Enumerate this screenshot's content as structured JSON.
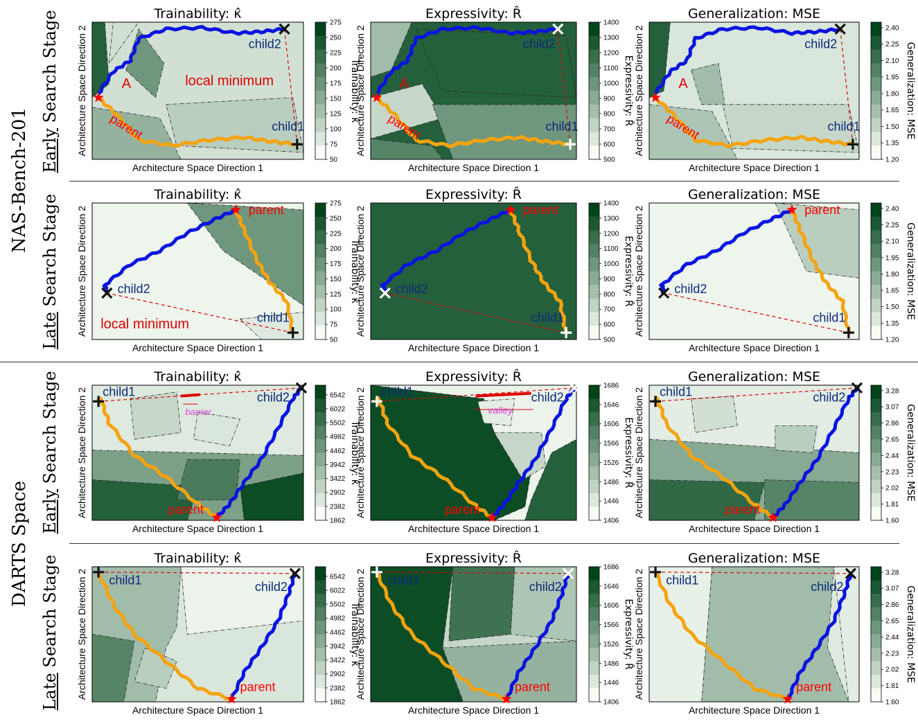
{
  "figure": {
    "group_labels": [
      "NAS-Bench-201",
      "DARTS Space"
    ],
    "stage_words": [
      "Early",
      "Late"
    ],
    "stage_suffix": " Search Stage",
    "xlabel": "Architecture Space Direction 1",
    "ylabel": "Architecture Space Direction 2",
    "metric_titles": [
      "Trainability: κ̂",
      "Expressivity: R̂",
      "Generalization: MSE"
    ],
    "colorbar_labels": [
      "Trainability: κ̂",
      "Expressivity: R̂",
      "Generalization: MSE"
    ],
    "point_labels": {
      "parent": "parent",
      "child1": "child1",
      "child2": "child2"
    },
    "annotations": {
      "A": "A",
      "local_minimum": "local minimum",
      "barrier": "barrier",
      "valley": "valley"
    },
    "colors": {
      "child2_path": "#0a14e0",
      "child1_path": "#f5a30f",
      "parent_marker": "#ff0000",
      "dashed_line": "#e00000",
      "annotation": "#e00000",
      "barrier_label": "#e040e0",
      "label_navy": "#0d2a78"
    }
  },
  "chart_data": [
    {
      "type": "heatmap",
      "title": "Trainability: κ̂",
      "space": "NAS-Bench-201",
      "stage": "Early",
      "xlabel": "Architecture Space Direction 1",
      "ylabel": "Architecture Space Direction 2",
      "colorbar_label": "Trainability: κ̂",
      "colorbar_ticks": [
        "50",
        "75",
        "100",
        "125",
        "150",
        "175",
        "200",
        "225",
        "250",
        "275"
      ],
      "colorbar_range": [
        50,
        275
      ],
      "annotations": [
        "A",
        "local minimum"
      ]
    },
    {
      "type": "heatmap",
      "title": "Expressivity: R̂",
      "space": "NAS-Bench-201",
      "stage": "Early",
      "xlabel": "Architecture Space Direction 1",
      "ylabel": "Architecture Space Direction 2",
      "colorbar_label": "Expressivity: R̂",
      "colorbar_ticks": [
        "500",
        "600",
        "700",
        "800",
        "900",
        "1000",
        "1100",
        "1200",
        "1300",
        "1400"
      ],
      "colorbar_range": [
        500,
        1400
      ],
      "annotations": [
        "A"
      ]
    },
    {
      "type": "heatmap",
      "title": "Generalization: MSE",
      "space": "NAS-Bench-201",
      "stage": "Early",
      "xlabel": "Architecture Space Direction 1",
      "ylabel": "Architecture Space Direction 2",
      "colorbar_label": "Generalization: MSE",
      "colorbar_ticks": [
        "1.20",
        "1.35",
        "1.50",
        "1.65",
        "1.80",
        "1.95",
        "2.10",
        "2.25",
        "2.40"
      ],
      "colorbar_range": [
        1.2,
        2.45
      ],
      "annotations": [
        "A"
      ]
    },
    {
      "type": "heatmap",
      "title": "Trainability: κ̂",
      "space": "NAS-Bench-201",
      "stage": "Late",
      "xlabel": "Architecture Space Direction 1",
      "ylabel": "Architecture Space Direction 2",
      "colorbar_label": "Trainability: κ̂",
      "colorbar_ticks": [
        "50",
        "75",
        "100",
        "125",
        "150",
        "175",
        "200",
        "225",
        "250",
        "275"
      ],
      "colorbar_range": [
        50,
        275
      ],
      "annotations": [
        "local minimum"
      ]
    },
    {
      "type": "heatmap",
      "title": "Expressivity: R̂",
      "space": "NAS-Bench-201",
      "stage": "Late",
      "xlabel": "Architecture Space Direction 1",
      "ylabel": "Architecture Space Direction 2",
      "colorbar_label": "Expressivity: R̂",
      "colorbar_ticks": [
        "500",
        "600",
        "700",
        "800",
        "900",
        "1000",
        "1100",
        "1200",
        "1300",
        "1400"
      ],
      "colorbar_range": [
        500,
        1400
      ],
      "annotations": []
    },
    {
      "type": "heatmap",
      "title": "Generalization: MSE",
      "space": "NAS-Bench-201",
      "stage": "Late",
      "xlabel": "Architecture Space Direction 1",
      "ylabel": "Architecture Space Direction 2",
      "colorbar_label": "Generalization: MSE",
      "colorbar_ticks": [
        "1.20",
        "1.35",
        "1.50",
        "1.65",
        "1.80",
        "1.95",
        "2.10",
        "2.25",
        "2.40"
      ],
      "colorbar_range": [
        1.2,
        2.45
      ],
      "annotations": []
    },
    {
      "type": "heatmap",
      "title": "Trainability: κ̂",
      "space": "DARTS Space",
      "stage": "Early",
      "xlabel": "Architecture Space Direction 1",
      "ylabel": "Architecture Space Direction 2",
      "colorbar_label": "Trainability: κ̂",
      "colorbar_ticks": [
        "1862",
        "2382",
        "2902",
        "3422",
        "3942",
        "4462",
        "4982",
        "5502",
        "6022",
        "6542"
      ],
      "colorbar_range": [
        1862,
        6900
      ],
      "annotations": [
        "barrier"
      ]
    },
    {
      "type": "heatmap",
      "title": "Expressivity: R̂",
      "space": "DARTS Space",
      "stage": "Early",
      "xlabel": "Architecture Space Direction 1",
      "ylabel": "Architecture Space Direction 2",
      "colorbar_label": "Expressivity: R̂",
      "colorbar_ticks": [
        "1406",
        "1446",
        "1486",
        "1526",
        "1566",
        "1606",
        "1646",
        "1686"
      ],
      "colorbar_range": [
        1406,
        1686
      ],
      "annotations": [
        "valley"
      ]
    },
    {
      "type": "heatmap",
      "title": "Generalization: MSE",
      "space": "DARTS Space",
      "stage": "Early",
      "xlabel": "Architecture Space Direction 1",
      "ylabel": "Architecture Space Direction 2",
      "colorbar_label": "Generalization: MSE",
      "colorbar_ticks": [
        "1.60",
        "1.81",
        "2.02",
        "2.23",
        "2.44",
        "2.65",
        "2.86",
        "3.07",
        "3.28"
      ],
      "colorbar_range": [
        1.6,
        3.35
      ],
      "annotations": []
    },
    {
      "type": "heatmap",
      "title": "Trainability: κ̂",
      "space": "DARTS Space",
      "stage": "Late",
      "xlabel": "Architecture Space Direction 1",
      "ylabel": "Architecture Space Direction 2",
      "colorbar_label": "Trainability: κ̂",
      "colorbar_ticks": [
        "1862",
        "2382",
        "2902",
        "3422",
        "3942",
        "4462",
        "4982",
        "5502",
        "6022",
        "6542"
      ],
      "colorbar_range": [
        1862,
        6900
      ],
      "annotations": []
    },
    {
      "type": "heatmap",
      "title": "Expressivity: R̂",
      "space": "DARTS Space",
      "stage": "Late",
      "xlabel": "Architecture Space Direction 1",
      "ylabel": "Architecture Space Direction 2",
      "colorbar_label": "Expressivity: R̂",
      "colorbar_ticks": [
        "1406",
        "1446",
        "1486",
        "1526",
        "1566",
        "1606",
        "1646",
        "1686"
      ],
      "colorbar_range": [
        1406,
        1686
      ],
      "annotations": []
    },
    {
      "type": "heatmap",
      "title": "Generalization: MSE",
      "space": "DARTS Space",
      "stage": "Late",
      "xlabel": "Architecture Space Direction 1",
      "ylabel": "Architecture Space Direction 2",
      "colorbar_label": "Generalization: MSE",
      "colorbar_ticks": [
        "1.60",
        "1.81",
        "2.02",
        "2.23",
        "2.44",
        "2.65",
        "2.86",
        "3.07",
        "3.28"
      ],
      "colorbar_range": [
        1.6,
        3.35
      ],
      "annotations": []
    }
  ]
}
